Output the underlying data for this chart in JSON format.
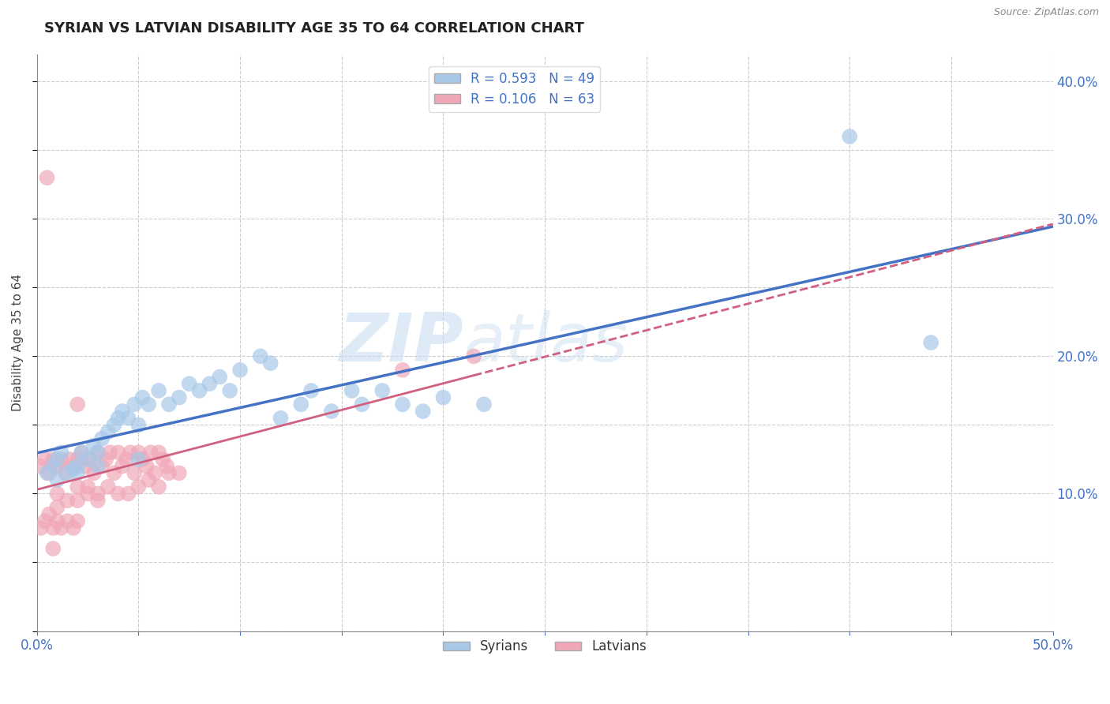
{
  "title": "SYRIAN VS LATVIAN DISABILITY AGE 35 TO 64 CORRELATION CHART",
  "source": "Source: ZipAtlas.com",
  "ylabel": "Disability Age 35 to 64",
  "xlim": [
    0.0,
    0.5
  ],
  "ylim": [
    0.0,
    0.42
  ],
  "xticks": [
    0.0,
    0.05,
    0.1,
    0.15,
    0.2,
    0.25,
    0.3,
    0.35,
    0.4,
    0.45,
    0.5
  ],
  "yticks": [
    0.0,
    0.05,
    0.1,
    0.15,
    0.2,
    0.25,
    0.3,
    0.35,
    0.4
  ],
  "syrian_color": "#a8c8e8",
  "latvian_color": "#f0a8b8",
  "syrian_line_color": "#4472c4",
  "latvian_line_color": "#d06080",
  "R_syrian": 0.593,
  "N_syrian": 49,
  "R_latvian": 0.106,
  "N_latvian": 63,
  "background_color": "#ffffff",
  "grid_color": "#c8c8c8",
  "watermark_text": "ZIP",
  "watermark_text2": "atlas",
  "tick_color": "#4472c4",
  "syrians_x": [
    0.005,
    0.008,
    0.01,
    0.012,
    0.015,
    0.018,
    0.02,
    0.022,
    0.025,
    0.028,
    0.03,
    0.032,
    0.035,
    0.038,
    0.04,
    0.042,
    0.045,
    0.048,
    0.05,
    0.052,
    0.055,
    0.06,
    0.065,
    0.07,
    0.075,
    0.08,
    0.085,
    0.09,
    0.095,
    0.1,
    0.11,
    0.115,
    0.12,
    0.13,
    0.135,
    0.145,
    0.155,
    0.16,
    0.17,
    0.18,
    0.19,
    0.2,
    0.22,
    0.01,
    0.02,
    0.03,
    0.05,
    0.4,
    0.44
  ],
  "syrians_y": [
    0.115,
    0.12,
    0.125,
    0.13,
    0.115,
    0.118,
    0.12,
    0.13,
    0.125,
    0.135,
    0.13,
    0.14,
    0.145,
    0.15,
    0.155,
    0.16,
    0.155,
    0.165,
    0.15,
    0.17,
    0.165,
    0.175,
    0.165,
    0.17,
    0.18,
    0.175,
    0.18,
    0.185,
    0.175,
    0.19,
    0.2,
    0.195,
    0.155,
    0.165,
    0.175,
    0.16,
    0.175,
    0.165,
    0.175,
    0.165,
    0.16,
    0.17,
    0.165,
    0.11,
    0.115,
    0.12,
    0.125,
    0.36,
    0.21
  ],
  "latvians_x": [
    0.002,
    0.004,
    0.006,
    0.008,
    0.01,
    0.012,
    0.014,
    0.016,
    0.018,
    0.02,
    0.022,
    0.024,
    0.026,
    0.028,
    0.03,
    0.032,
    0.034,
    0.036,
    0.038,
    0.04,
    0.042,
    0.044,
    0.046,
    0.048,
    0.05,
    0.052,
    0.054,
    0.056,
    0.058,
    0.06,
    0.062,
    0.064,
    0.01,
    0.01,
    0.015,
    0.02,
    0.02,
    0.025,
    0.025,
    0.03,
    0.03,
    0.035,
    0.04,
    0.045,
    0.05,
    0.055,
    0.06,
    0.065,
    0.07,
    0.002,
    0.004,
    0.006,
    0.008,
    0.01,
    0.012,
    0.015,
    0.018,
    0.02,
    0.215,
    0.008,
    0.02,
    0.18,
    0.005
  ],
  "latvians_y": [
    0.12,
    0.125,
    0.115,
    0.125,
    0.12,
    0.125,
    0.115,
    0.125,
    0.12,
    0.125,
    0.13,
    0.12,
    0.125,
    0.115,
    0.13,
    0.12,
    0.125,
    0.13,
    0.115,
    0.13,
    0.12,
    0.125,
    0.13,
    0.115,
    0.13,
    0.125,
    0.12,
    0.13,
    0.115,
    0.13,
    0.125,
    0.12,
    0.09,
    0.1,
    0.095,
    0.095,
    0.105,
    0.1,
    0.105,
    0.1,
    0.095,
    0.105,
    0.1,
    0.1,
    0.105,
    0.11,
    0.105,
    0.115,
    0.115,
    0.075,
    0.08,
    0.085,
    0.075,
    0.08,
    0.075,
    0.08,
    0.075,
    0.08,
    0.2,
    0.06,
    0.165,
    0.19,
    0.33
  ]
}
